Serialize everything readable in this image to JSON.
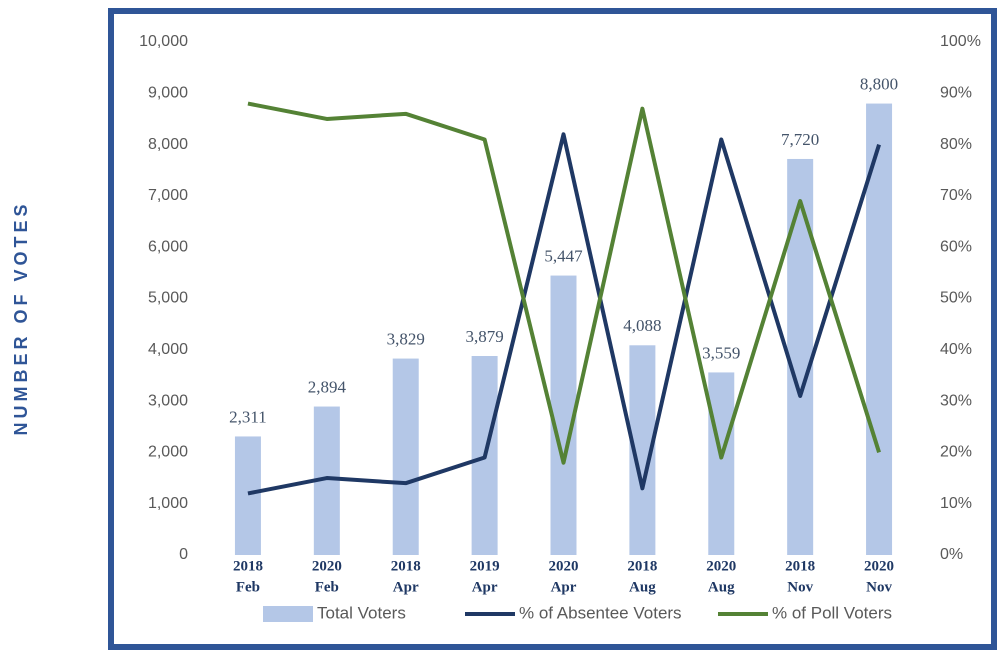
{
  "chart_data": {
    "type": "bar",
    "ylabel": "NUMBER OF VOTES",
    "categories": [
      [
        "2018",
        "Feb"
      ],
      [
        "2020",
        "Feb"
      ],
      [
        "2018",
        "Apr"
      ],
      [
        "2019",
        "Apr"
      ],
      [
        "2020",
        "Apr"
      ],
      [
        "2018",
        "Aug"
      ],
      [
        "2020",
        "Aug"
      ],
      [
        "2018",
        "Nov"
      ],
      [
        "2020",
        "Nov"
      ]
    ],
    "series": [
      {
        "name": "Total Voters",
        "type": "bar",
        "axis": "y",
        "color": "#b4c7e7",
        "values": [
          2311,
          2894,
          3829,
          3879,
          5447,
          4088,
          3559,
          7720,
          8800
        ],
        "value_labels": [
          "2,311",
          "2,894",
          "3,829",
          "3,879",
          "5,447",
          "4,088",
          "3,559",
          "7,720",
          "8,800"
        ]
      },
      {
        "name": "% of Absentee Voters",
        "type": "line",
        "axis": "y2",
        "color": "#1f3864",
        "values": [
          12,
          15,
          14,
          19,
          82,
          13,
          81,
          31,
          80
        ]
      },
      {
        "name": "% of Poll Voters",
        "type": "line",
        "axis": "y2",
        "color": "#548235",
        "values": [
          88,
          85,
          86,
          81,
          18,
          87,
          19,
          69,
          20
        ]
      }
    ],
    "ylim": [
      0,
      10000
    ],
    "yticks": [
      0,
      {
        "value": 1000,
        "label": "1,000"
      },
      {
        "value": 2000,
        "label": "2,000"
      },
      {
        "value": 3000,
        "label": "3,000"
      },
      {
        "value": 4000,
        "label": "4,000"
      },
      {
        "value": 5000,
        "label": "5,000"
      },
      {
        "value": 6000,
        "label": "6,000"
      },
      {
        "value": 7000,
        "label": "7,000"
      },
      {
        "value": 8000,
        "label": "8,000"
      },
      {
        "value": 9000,
        "label": "9,000"
      },
      {
        "value": 10000,
        "label": "10,000"
      }
    ],
    "y2lim": [
      0,
      100
    ],
    "y2ticks": [
      {
        "value": 0,
        "label": "0%"
      },
      {
        "value": 10,
        "label": "10%"
      },
      {
        "value": 20,
        "label": "20%"
      },
      {
        "value": 30,
        "label": "30%"
      },
      {
        "value": 40,
        "label": "40%"
      },
      {
        "value": 50,
        "label": "50%"
      },
      {
        "value": 60,
        "label": "60%"
      },
      {
        "value": 70,
        "label": "70%"
      },
      {
        "value": 80,
        "label": "80%"
      },
      {
        "value": 90,
        "label": "90%"
      },
      {
        "value": 100,
        "label": "100%"
      }
    ],
    "grid": false,
    "legend": "bottom"
  }
}
